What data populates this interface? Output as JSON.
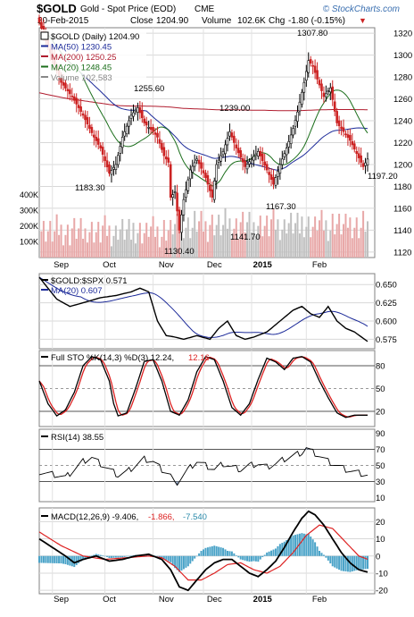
{
  "header": {
    "symbol": "$GOLD",
    "name": "Gold - Spot Price (EOD)",
    "exchange": "CME",
    "copyright": "© StockCharts.com",
    "date": "20-Feb-2015",
    "close_label": "Close",
    "close_value": "1204.90",
    "volume_label": "Volume",
    "volume_value": "102.6K",
    "chg_label": "Chg",
    "chg_value": "-1.80 (-0.15%)",
    "chg_arrow": "▼"
  },
  "chart_data": [
    {
      "type": "candlestick",
      "panel": "price",
      "legend": [
        {
          "text": "$GOLD (Daily) 1204.90",
          "color": "#000000"
        },
        {
          "text": "MA(50) 1230.45",
          "color": "#1c2a99"
        },
        {
          "text": "MA(200) 1250.25",
          "color": "#b01c2e"
        },
        {
          "text": "MA(20) 1248.45",
          "color": "#1b6e1b"
        },
        {
          "text": "Volume 102,583",
          "color": "#888888"
        }
      ],
      "x_labels": [
        "Sep",
        "Oct",
        "Nov",
        "Dec",
        "2015",
        "Feb"
      ],
      "y_ticks": [
        1120,
        1140,
        1160,
        1180,
        1200,
        1220,
        1240,
        1260,
        1280,
        1300,
        1320
      ],
      "ylim": [
        1115,
        1325
      ],
      "volume_ticks": [
        "100K",
        "200K",
        "300K",
        "400K"
      ],
      "annotations": [
        "1307.80",
        "1255.60",
        "1239.00",
        "1183.30",
        "1167.30",
        "1197.20",
        "1130.40",
        "1141.70"
      ],
      "series_colors": {
        "up": "#000000",
        "down": "#cc2222",
        "ma50": "#1c2a99",
        "ma200": "#b01c2e",
        "ma20": "#1b6e1b",
        "vol_up": "#c0c0c0",
        "vol_down": "#e8a8a8"
      },
      "anchors": [
        [
          0,
          1330
        ],
        [
          5,
          1302
        ],
        [
          10,
          1275
        ],
        [
          15,
          1262
        ],
        [
          20,
          1245
        ],
        [
          25,
          1225
        ],
        [
          28,
          1215
        ],
        [
          32,
          1192
        ],
        [
          35,
          1200
        ],
        [
          38,
          1225
        ],
        [
          42,
          1245
        ],
        [
          45,
          1252
        ],
        [
          48,
          1238
        ],
        [
          52,
          1230
        ],
        [
          54,
          1225
        ],
        [
          57,
          1208
        ],
        [
          59,
          1202
        ],
        [
          60,
          1170
        ],
        [
          62,
          1175
        ],
        [
          64,
          1140
        ],
        [
          66,
          1168
        ],
        [
          69,
          1195
        ],
        [
          72,
          1205
        ],
        [
          76,
          1188
        ],
        [
          79,
          1170
        ],
        [
          81,
          1200
        ],
        [
          84,
          1212
        ],
        [
          87,
          1230
        ],
        [
          90,
          1215
        ],
        [
          94,
          1198
        ],
        [
          97,
          1205
        ],
        [
          100,
          1212
        ],
        [
          104,
          1195
        ],
        [
          107,
          1182
        ],
        [
          110,
          1200
        ],
        [
          113,
          1215
        ],
        [
          116,
          1233
        ],
        [
          118,
          1248
        ],
        [
          121,
          1275
        ],
        [
          123,
          1295
        ],
        [
          125,
          1290
        ],
        [
          127,
          1278
        ],
        [
          130,
          1262
        ],
        [
          133,
          1270
        ],
        [
          136,
          1238
        ],
        [
          139,
          1230
        ],
        [
          142,
          1222
        ],
        [
          145,
          1210
        ],
        [
          148,
          1198
        ],
        [
          150,
          1205
        ]
      ]
    },
    {
      "type": "line",
      "panel": "relative-strength",
      "legend": [
        {
          "text": "$GOLD:$SPX 0.571",
          "color": "#000000"
        },
        {
          "text": "MA(20) 0.607",
          "color": "#1c2a99"
        }
      ],
      "y_ticks": [
        0.575,
        0.6,
        0.625,
        0.65
      ],
      "y_tick_labels": [
        "0.575",
        "0.600",
        "0.625",
        "0.650"
      ],
      "ylim": [
        0.562,
        0.665
      ],
      "anchors": [
        [
          0,
          0.66
        ],
        [
          8,
          0.63
        ],
        [
          14,
          0.62
        ],
        [
          20,
          0.625
        ],
        [
          28,
          0.632
        ],
        [
          35,
          0.635
        ],
        [
          42,
          0.64
        ],
        [
          46,
          0.645
        ],
        [
          50,
          0.64
        ],
        [
          54,
          0.6
        ],
        [
          58,
          0.58
        ],
        [
          62,
          0.578
        ],
        [
          66,
          0.575
        ],
        [
          72,
          0.58
        ],
        [
          78,
          0.575
        ],
        [
          82,
          0.59
        ],
        [
          86,
          0.6
        ],
        [
          90,
          0.58
        ],
        [
          94,
          0.575
        ],
        [
          98,
          0.578
        ],
        [
          104,
          0.585
        ],
        [
          110,
          0.6
        ],
        [
          116,
          0.615
        ],
        [
          120,
          0.62
        ],
        [
          124,
          0.61
        ],
        [
          128,
          0.605
        ],
        [
          132,
          0.62
        ],
        [
          136,
          0.6
        ],
        [
          140,
          0.59
        ],
        [
          144,
          0.585
        ],
        [
          150,
          0.572
        ]
      ]
    },
    {
      "type": "line",
      "panel": "full-stochastics",
      "legend": [
        {
          "text": "Full STO %K(14,3) %D(3) 12.24,",
          "color": "#000000"
        },
        {
          "text": "12.16",
          "color": "#dd2222"
        }
      ],
      "y_ticks": [
        20,
        50,
        80
      ],
      "ylim": [
        0,
        100
      ],
      "anchors": [
        [
          0,
          60
        ],
        [
          4,
          30
        ],
        [
          8,
          14
        ],
        [
          12,
          22
        ],
        [
          16,
          45
        ],
        [
          20,
          80
        ],
        [
          24,
          92
        ],
        [
          28,
          88
        ],
        [
          32,
          60
        ],
        [
          34,
          30
        ],
        [
          36,
          14
        ],
        [
          40,
          18
        ],
        [
          44,
          50
        ],
        [
          48,
          86
        ],
        [
          52,
          88
        ],
        [
          56,
          60
        ],
        [
          60,
          20
        ],
        [
          64,
          15
        ],
        [
          68,
          35
        ],
        [
          72,
          72
        ],
        [
          76,
          92
        ],
        [
          80,
          88
        ],
        [
          84,
          60
        ],
        [
          88,
          25
        ],
        [
          92,
          15
        ],
        [
          96,
          30
        ],
        [
          100,
          62
        ],
        [
          104,
          90
        ],
        [
          108,
          85
        ],
        [
          112,
          75
        ],
        [
          116,
          90
        ],
        [
          120,
          92
        ],
        [
          124,
          85
        ],
        [
          128,
          60
        ],
        [
          132,
          38
        ],
        [
          136,
          18
        ],
        [
          140,
          12
        ],
        [
          144,
          15
        ],
        [
          150,
          15
        ]
      ]
    },
    {
      "type": "area",
      "panel": "rsi",
      "legend": [
        {
          "text": "RSI(14) 38.55",
          "color": "#000000"
        }
      ],
      "y_ticks": [
        10,
        30,
        50,
        70,
        90
      ],
      "guide_lines": [
        30,
        70
      ],
      "ylim": [
        5,
        95
      ],
      "anchors": [
        [
          0,
          42
        ],
        [
          4,
          40
        ],
        [
          8,
          38
        ],
        [
          12,
          35
        ],
        [
          16,
          45
        ],
        [
          20,
          55
        ],
        [
          24,
          60
        ],
        [
          28,
          52
        ],
        [
          32,
          45
        ],
        [
          36,
          38
        ],
        [
          40,
          42
        ],
        [
          44,
          50
        ],
        [
          48,
          58
        ],
        [
          52,
          55
        ],
        [
          56,
          45
        ],
        [
          60,
          38
        ],
        [
          62,
          26
        ],
        [
          64,
          32
        ],
        [
          68,
          45
        ],
        [
          72,
          55
        ],
        [
          76,
          50
        ],
        [
          80,
          45
        ],
        [
          84,
          52
        ],
        [
          88,
          48
        ],
        [
          92,
          45
        ],
        [
          96,
          50
        ],
        [
          100,
          52
        ],
        [
          104,
          48
        ],
        [
          108,
          52
        ],
        [
          112,
          58
        ],
        [
          116,
          62
        ],
        [
          120,
          66
        ],
        [
          122,
          72
        ],
        [
          124,
          68
        ],
        [
          128,
          62
        ],
        [
          132,
          55
        ],
        [
          136,
          50
        ],
        [
          140,
          45
        ],
        [
          144,
          42
        ],
        [
          150,
          38
        ]
      ]
    },
    {
      "type": "line",
      "panel": "macd",
      "legend": [
        {
          "text": "MACD(12,26,9) -9.406,",
          "color": "#000000"
        },
        {
          "text": "-1.866,",
          "color": "#dd2222"
        },
        {
          "text": "-7.540",
          "color": "#2a8aaa"
        }
      ],
      "y_ticks": [
        -20,
        -10,
        0,
        10,
        20
      ],
      "ylim": [
        -22,
        28
      ],
      "macd_anchors": [
        [
          0,
          10
        ],
        [
          6,
          5
        ],
        [
          12,
          0
        ],
        [
          16,
          -4
        ],
        [
          20,
          -2
        ],
        [
          26,
          0
        ],
        [
          32,
          -3
        ],
        [
          38,
          -2
        ],
        [
          44,
          0
        ],
        [
          50,
          1
        ],
        [
          56,
          -2
        ],
        [
          60,
          -8
        ],
        [
          64,
          -18
        ],
        [
          68,
          -20
        ],
        [
          72,
          -14
        ],
        [
          76,
          -8
        ],
        [
          80,
          -4
        ],
        [
          84,
          -2
        ],
        [
          88,
          -2
        ],
        [
          92,
          -6
        ],
        [
          96,
          -10
        ],
        [
          100,
          -12
        ],
        [
          104,
          -8
        ],
        [
          108,
          -3
        ],
        [
          112,
          5
        ],
        [
          116,
          14
        ],
        [
          120,
          22
        ],
        [
          123,
          26
        ],
        [
          126,
          24
        ],
        [
          130,
          18
        ],
        [
          134,
          10
        ],
        [
          138,
          2
        ],
        [
          142,
          -4
        ],
        [
          146,
          -8
        ],
        [
          150,
          -9.4
        ]
      ],
      "signal_anchors": [
        [
          0,
          14
        ],
        [
          10,
          6
        ],
        [
          20,
          0
        ],
        [
          30,
          -2
        ],
        [
          40,
          -1
        ],
        [
          50,
          0
        ],
        [
          56,
          -1
        ],
        [
          62,
          -6
        ],
        [
          68,
          -14
        ],
        [
          74,
          -14
        ],
        [
          80,
          -10
        ],
        [
          86,
          -5
        ],
        [
          92,
          -4
        ],
        [
          98,
          -8
        ],
        [
          104,
          -10
        ],
        [
          110,
          -6
        ],
        [
          116,
          2
        ],
        [
          122,
          12
        ],
        [
          128,
          18
        ],
        [
          134,
          16
        ],
        [
          140,
          8
        ],
        [
          146,
          0
        ],
        [
          150,
          -1.9
        ]
      ]
    }
  ]
}
